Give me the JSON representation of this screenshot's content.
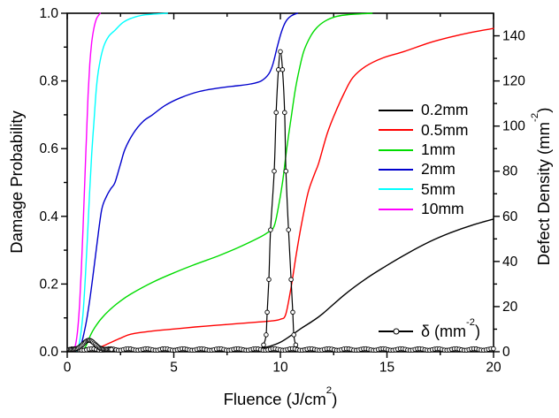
{
  "chart_data": {
    "type": "line",
    "title": "",
    "xlabel": "Fluence (J/cm2)",
    "ylabel_left": "Damage Probability",
    "ylabel_right": "Defect Density (mm-2)",
    "xlim": [
      0,
      20
    ],
    "ylim_left": [
      0.0,
      1.0
    ],
    "ylim_right": [
      0,
      150
    ],
    "grid": false,
    "legend_position": "middle-right",
    "x_major_ticks": [
      0,
      5,
      10,
      15,
      20
    ],
    "x_minor_ticks": [
      2.5,
      7.5,
      12.5,
      17.5
    ],
    "y_left_major_ticks": [
      0.0,
      0.2,
      0.4,
      0.6,
      0.8,
      1.0
    ],
    "y_left_minor_ticks": [
      0.1,
      0.3,
      0.5,
      0.7,
      0.9
    ],
    "y_right_major_ticks": [
      0,
      20,
      40,
      60,
      80,
      100,
      120,
      140
    ],
    "y_right_minor_ticks": [
      10,
      30,
      50,
      70,
      90,
      110,
      130
    ],
    "series": [
      {
        "name": "0.2mm",
        "color": "#000000",
        "axis": "left",
        "points": [
          [
            7,
            0.003
          ],
          [
            8,
            0.004
          ],
          [
            8.5,
            0.006
          ],
          [
            9,
            0.01
          ],
          [
            9.5,
            0.016
          ],
          [
            10,
            0.028
          ],
          [
            10.5,
            0.048
          ],
          [
            11,
            0.07
          ],
          [
            11.5,
            0.09
          ],
          [
            12,
            0.113
          ],
          [
            13,
            0.168
          ],
          [
            14,
            0.215
          ],
          [
            15,
            0.255
          ],
          [
            16,
            0.292
          ],
          [
            17,
            0.325
          ],
          [
            18,
            0.352
          ],
          [
            19,
            0.374
          ],
          [
            20,
            0.392
          ]
        ]
      },
      {
        "name": "0.5mm",
        "color": "#FF0000",
        "axis": "left",
        "points": [
          [
            0.85,
            0.001
          ],
          [
            1.2,
            0.006
          ],
          [
            1.6,
            0.015
          ],
          [
            2,
            0.026
          ],
          [
            2.5,
            0.04
          ],
          [
            3,
            0.052
          ],
          [
            4,
            0.061
          ],
          [
            5,
            0.067
          ],
          [
            6,
            0.073
          ],
          [
            7,
            0.078
          ],
          [
            8,
            0.083
          ],
          [
            9,
            0.088
          ],
          [
            9.6,
            0.091
          ],
          [
            10,
            0.096
          ],
          [
            10.25,
            0.11
          ],
          [
            10.5,
            0.19
          ],
          [
            10.75,
            0.29
          ],
          [
            11,
            0.38
          ],
          [
            11.3,
            0.47
          ],
          [
            11.6,
            0.525
          ],
          [
            11.8,
            0.558
          ],
          [
            12.2,
            0.645
          ],
          [
            12.6,
            0.71
          ],
          [
            13,
            0.765
          ],
          [
            13.4,
            0.81
          ],
          [
            14,
            0.843
          ],
          [
            14.8,
            0.868
          ],
          [
            15.8,
            0.887
          ],
          [
            17,
            0.913
          ],
          [
            18,
            0.93
          ],
          [
            19,
            0.944
          ],
          [
            20,
            0.955
          ]
        ]
      },
      {
        "name": "1mm",
        "color": "#00DC00",
        "axis": "left",
        "points": [
          [
            0.72,
            0.001
          ],
          [
            0.9,
            0.02
          ],
          [
            1.1,
            0.05
          ],
          [
            1.3,
            0.072
          ],
          [
            1.6,
            0.098
          ],
          [
            2,
            0.124
          ],
          [
            2.5,
            0.15
          ],
          [
            3,
            0.171
          ],
          [
            4,
            0.205
          ],
          [
            5,
            0.233
          ],
          [
            6,
            0.258
          ],
          [
            7,
            0.281
          ],
          [
            8,
            0.307
          ],
          [
            9,
            0.337
          ],
          [
            9.4,
            0.352
          ],
          [
            9.7,
            0.37
          ],
          [
            9.9,
            0.425
          ],
          [
            10.1,
            0.5
          ],
          [
            10.3,
            0.6
          ],
          [
            10.5,
            0.69
          ],
          [
            10.7,
            0.775
          ],
          [
            10.9,
            0.838
          ],
          [
            11.1,
            0.888
          ],
          [
            11.4,
            0.93
          ],
          [
            11.7,
            0.957
          ],
          [
            12.1,
            0.977
          ],
          [
            12.6,
            0.99
          ],
          [
            13.2,
            0.996
          ],
          [
            14.3,
            1.0
          ]
        ]
      },
      {
        "name": "2mm",
        "color": "#0000CD",
        "axis": "left",
        "points": [
          [
            0.5,
            0.002
          ],
          [
            0.62,
            0.015
          ],
          [
            0.75,
            0.045
          ],
          [
            0.9,
            0.09
          ],
          [
            1.05,
            0.15
          ],
          [
            1.2,
            0.22
          ],
          [
            1.4,
            0.32
          ],
          [
            1.62,
            0.42
          ],
          [
            1.85,
            0.46
          ],
          [
            2.05,
            0.482
          ],
          [
            2.24,
            0.5
          ],
          [
            2.5,
            0.555
          ],
          [
            2.72,
            0.6
          ],
          [
            3.1,
            0.645
          ],
          [
            3.55,
            0.68
          ],
          [
            4,
            0.7
          ],
          [
            4.6,
            0.728
          ],
          [
            5.3,
            0.75
          ],
          [
            6.2,
            0.769
          ],
          [
            7.2,
            0.78
          ],
          [
            8,
            0.786
          ],
          [
            8.6,
            0.791
          ],
          [
            9.1,
            0.8
          ],
          [
            9.45,
            0.82
          ],
          [
            9.65,
            0.85
          ],
          [
            9.85,
            0.9
          ],
          [
            10.05,
            0.945
          ],
          [
            10.25,
            0.975
          ],
          [
            10.5,
            0.992
          ],
          [
            10.8,
            1.0
          ]
        ]
      },
      {
        "name": "5mm",
        "color": "#00FFFF",
        "axis": "left",
        "points": [
          [
            0.45,
            0.002
          ],
          [
            0.55,
            0.02
          ],
          [
            0.65,
            0.06
          ],
          [
            0.75,
            0.12
          ],
          [
            0.85,
            0.22
          ],
          [
            0.95,
            0.34
          ],
          [
            1.05,
            0.47
          ],
          [
            1.15,
            0.585
          ],
          [
            1.25,
            0.675
          ],
          [
            1.37,
            0.78
          ],
          [
            1.5,
            0.845
          ],
          [
            1.7,
            0.9
          ],
          [
            1.95,
            0.932
          ],
          [
            2.24,
            0.95
          ],
          [
            2.6,
            0.972
          ],
          [
            3,
            0.985
          ],
          [
            3.6,
            0.995
          ],
          [
            4.7,
            1.0
          ]
        ]
      },
      {
        "name": "10mm",
        "color": "#FF00FF",
        "axis": "left",
        "points": [
          [
            0.32,
            0.002
          ],
          [
            0.42,
            0.03
          ],
          [
            0.5,
            0.07
          ],
          [
            0.58,
            0.14
          ],
          [
            0.66,
            0.24
          ],
          [
            0.74,
            0.36
          ],
          [
            0.82,
            0.5
          ],
          [
            0.9,
            0.63
          ],
          [
            0.98,
            0.76
          ],
          [
            1.06,
            0.85
          ],
          [
            1.15,
            0.915
          ],
          [
            1.25,
            0.955
          ],
          [
            1.38,
            0.985
          ],
          [
            1.55,
            1.0
          ]
        ]
      }
    ],
    "delta_series": {
      "name": "delta (mm-2)",
      "color": "#000000",
      "axis": "right",
      "marker": "open-circle",
      "peak_points": [
        [
          8.95,
          1.0
        ],
        [
          9.1,
          1.6
        ],
        [
          9.21,
          3
        ],
        [
          9.33,
          7.5
        ],
        [
          9.38,
          17.5
        ],
        [
          9.46,
          32
        ],
        [
          9.54,
          54
        ],
        [
          9.71,
          80
        ],
        [
          9.8,
          106
        ],
        [
          9.91,
          125
        ],
        [
          10.0,
          133
        ],
        [
          10.1,
          125
        ],
        [
          10.2,
          106
        ],
        [
          10.26,
          80
        ],
        [
          10.38,
          54
        ],
        [
          10.5,
          32
        ],
        [
          10.58,
          17.5
        ],
        [
          10.63,
          7.5
        ],
        [
          10.72,
          3
        ],
        [
          10.85,
          1.6
        ],
        [
          11.0,
          1.0
        ]
      ],
      "marker_min_value": 2.5,
      "bump": {
        "from": 0.15,
        "to": 2.1,
        "step": 0.055,
        "base": 1.0,
        "amplitude": 4.1,
        "center": 1.02,
        "sigma": 0.38
      },
      "baseline": {
        "from": 0.1,
        "to": 20.0,
        "step": 0.115,
        "value": 1.0,
        "jitter": 0.35
      }
    }
  },
  "axes": {
    "x": {
      "title_pre": "Fluence (J/cm",
      "title_sup": "2",
      "title_post": ")",
      "tick_labels": [
        "0",
        "5",
        "10",
        "15",
        "20"
      ]
    },
    "y_left": {
      "title": "Damage Probability",
      "tick_labels": [
        "0.0",
        "0.2",
        "0.4",
        "0.6",
        "0.8",
        "1.0"
      ]
    },
    "y_right": {
      "title_pre": "Defect Density (mm",
      "title_sup": "-2",
      "title_post": ")",
      "tick_labels": [
        "0",
        "20",
        "40",
        "60",
        "80",
        "100",
        "120",
        "140"
      ]
    }
  },
  "legend": {
    "entries": [
      {
        "label": "0.2mm",
        "color": "#000000"
      },
      {
        "label": "0.5mm",
        "color": "#FF0000"
      },
      {
        "label": "1mm",
        "color": "#00DC00"
      },
      {
        "label": "2mm",
        "color": "#0000CD"
      },
      {
        "label": "5mm",
        "color": "#00FFFF"
      },
      {
        "label": "10mm",
        "color": "#FF00FF"
      }
    ],
    "delta": {
      "label_pre": "δ (mm",
      "label_sup": "-2",
      "label_post": ")"
    }
  },
  "colors": {
    "foreground": "#000000",
    "background": "#FFFFFF"
  }
}
